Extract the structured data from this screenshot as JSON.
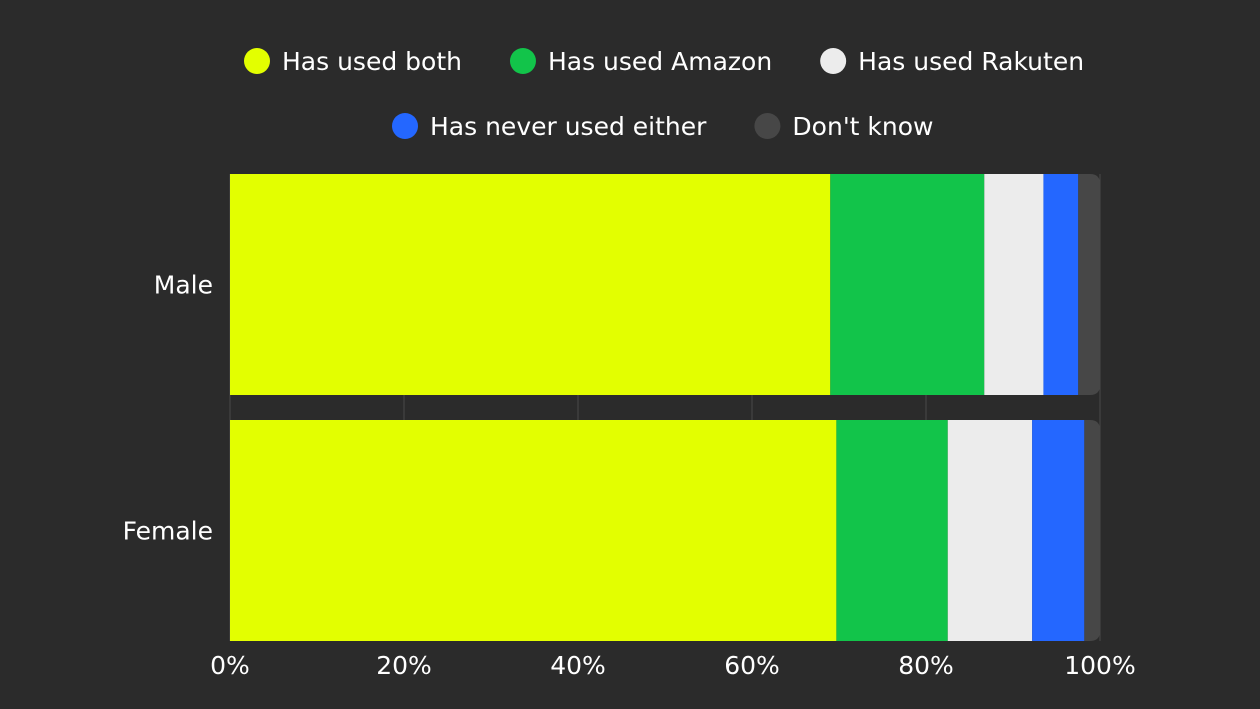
{
  "chart_data": {
    "type": "bar",
    "orientation": "horizontal",
    "stacked": true,
    "categories": [
      "Male",
      "Female"
    ],
    "series": [
      {
        "name": "Has used both",
        "color": "#e3ff00",
        "values": [
          69,
          69.7
        ]
      },
      {
        "name": "Has used Amazon",
        "color": "#12c44a",
        "values": [
          17.7,
          12.8
        ]
      },
      {
        "name": "Has used Rakuten",
        "color": "#ececec",
        "values": [
          6.8,
          9.7
        ]
      },
      {
        "name": "Has never used either",
        "color": "#2467ff",
        "values": [
          4.0,
          6.0
        ]
      },
      {
        "name": "Don't know",
        "color": "#474747",
        "values": [
          2.5,
          1.8
        ]
      }
    ],
    "xlim": [
      0,
      100
    ],
    "x_ticks": [
      "0%",
      "20%",
      "40%",
      "60%",
      "80%",
      "100%"
    ],
    "legend_position": "top",
    "grid": true
  }
}
